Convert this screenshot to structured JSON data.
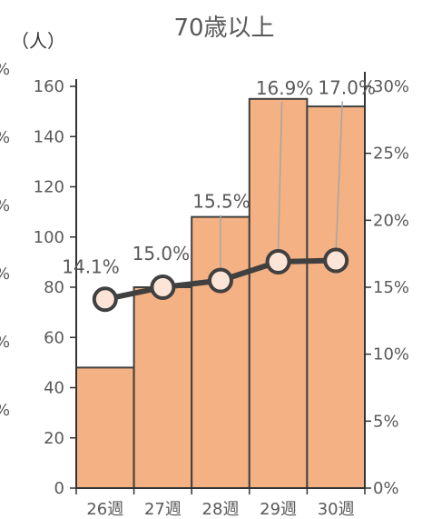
{
  "chart_data": {
    "type": "bar+line",
    "title": "70歳以上",
    "y_unit_label": "（人）",
    "categories": [
      "26週",
      "27週",
      "28週",
      "29週",
      "30週"
    ],
    "series": [
      {
        "type": "bar",
        "axis": "left",
        "values": [
          48,
          80,
          108,
          155,
          152
        ]
      },
      {
        "type": "line",
        "axis": "right",
        "values": [
          14.1,
          15.0,
          15.5,
          16.9,
          17.0
        ],
        "data_labels": [
          "14.1%",
          "15.0%",
          "15.5%",
          "16.9%",
          "17.0%"
        ]
      }
    ],
    "y_left": {
      "min": 0,
      "max": 160,
      "step": 20,
      "ticks": [
        "0",
        "20",
        "40",
        "60",
        "80",
        "100",
        "120",
        "140",
        "160"
      ]
    },
    "y_right": {
      "min": 0,
      "max": 30,
      "step": 5,
      "ticks": [
        "0%",
        "5%",
        "10%",
        "15%",
        "20%",
        "25%",
        "30%"
      ]
    },
    "grid": false,
    "legend": "none",
    "colors": {
      "bar_fill": "#f4b183",
      "bar_stroke": "#404040",
      "line": "#404040",
      "marker_fill": "#fce4d6",
      "leader": "#a6a6a6",
      "axis": "#333333"
    },
    "left_edge_fragments": [
      "%",
      "%",
      "%",
      "%",
      "%",
      "%"
    ]
  }
}
